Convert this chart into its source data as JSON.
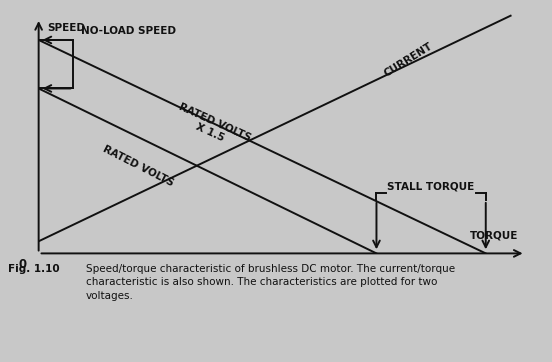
{
  "background_color": "#c8c8c8",
  "fig_background": "#c8c8c8",
  "caption": "Fig. 1.10",
  "caption_text": "Speed/torque characteristic of brushless DC motor. The current/torque\ncharacteristic is also shown. The characteristics are plotted for two\nvoltages.",
  "speed_label": "SPEED",
  "torque_label": "TORQUE",
  "no_load_speed_label": "NO-LOAD SPEED",
  "current_label": "CURRENT",
  "rated_volts_x15_line1": "RATED VOLTS",
  "rated_volts_x15_line2": "X 1.5",
  "rated_volts_lower_label": "RATED VOLTS",
  "stall_torque_label": "STALL TORQUE",
  "origin_label": "0",
  "line_color": "#111111",
  "text_color": "#111111",
  "xlim": [
    0,
    10
  ],
  "ylim": [
    0,
    10
  ],
  "no_load_speed_high": 8.8,
  "no_load_speed_low": 6.8,
  "stall_torque_high": 9.0,
  "stall_torque_low": 6.8,
  "current_line_start_x": 0.0,
  "current_line_start_y": 0.5,
  "current_line_end_x": 9.5,
  "current_line_end_y": 9.8
}
